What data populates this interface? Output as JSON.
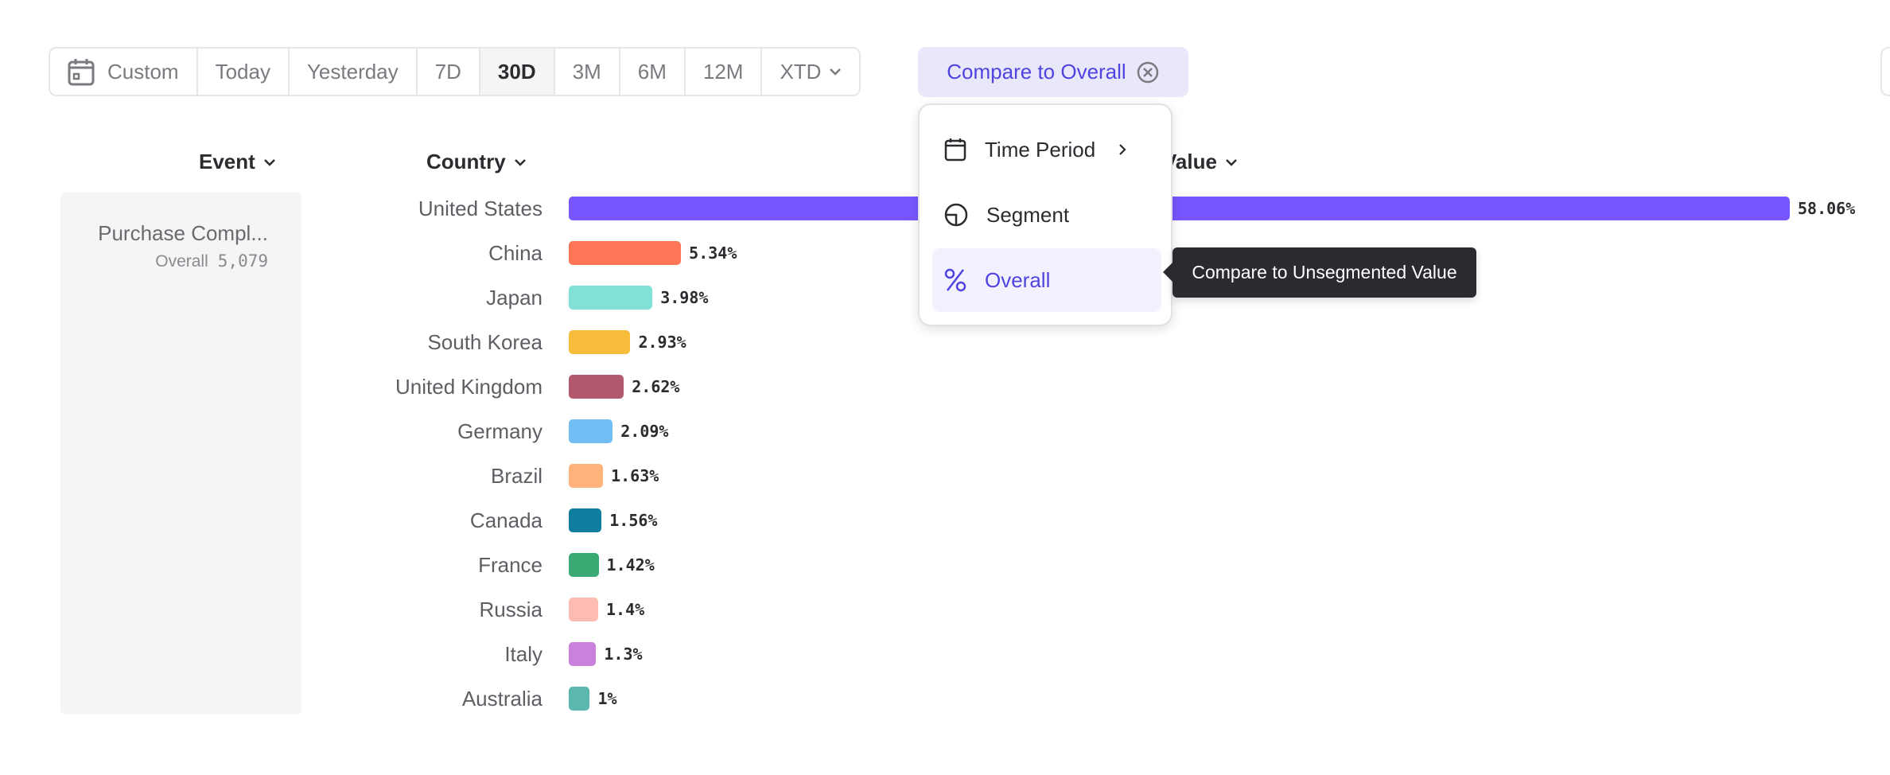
{
  "toolbar": {
    "custom": "Custom",
    "ranges": [
      "Today",
      "Yesterday",
      "7D",
      "30D",
      "3M",
      "6M",
      "12M"
    ],
    "xtd": "XTD",
    "active": "30D"
  },
  "compare": {
    "label": "Compare to Overall"
  },
  "headers": {
    "event": "Event",
    "country": "Country",
    "value": "Value"
  },
  "event": {
    "name": "Purchase Compl...",
    "sub_label": "Overall",
    "count": "5,079"
  },
  "menu": {
    "items": [
      {
        "label": "Time Period",
        "icon": "calendar-icon"
      },
      {
        "label": "Segment",
        "icon": "segment-icon"
      },
      {
        "label": "Overall",
        "icon": "percent-icon"
      }
    ],
    "selected": "Overall"
  },
  "tooltip": {
    "text": "Compare to Unsegmented Value"
  },
  "chart_data": {
    "type": "bar",
    "orientation": "horizontal",
    "categories": [
      "United States",
      "China",
      "Japan",
      "South Korea",
      "United Kingdom",
      "Germany",
      "Brazil",
      "Canada",
      "France",
      "Russia",
      "Italy",
      "Australia"
    ],
    "values": [
      58.06,
      5.34,
      3.98,
      2.93,
      2.62,
      2.09,
      1.63,
      1.56,
      1.42,
      1.4,
      1.3,
      1
    ],
    "labels": [
      "58.06%",
      "5.34%",
      "3.98%",
      "2.93%",
      "2.62%",
      "2.09%",
      "1.63%",
      "1.56%",
      "1.42%",
      "1.4%",
      "1.3%",
      "1%"
    ],
    "colors": [
      "#7856ff",
      "#ff7557",
      "#80e1d9",
      "#f8bc3b",
      "#b2596e",
      "#72bef4",
      "#ffb27a",
      "#0d7ea0",
      "#3ba974",
      "#febbb2",
      "#ca80dc",
      "#5bb7af"
    ],
    "unit": "%"
  }
}
